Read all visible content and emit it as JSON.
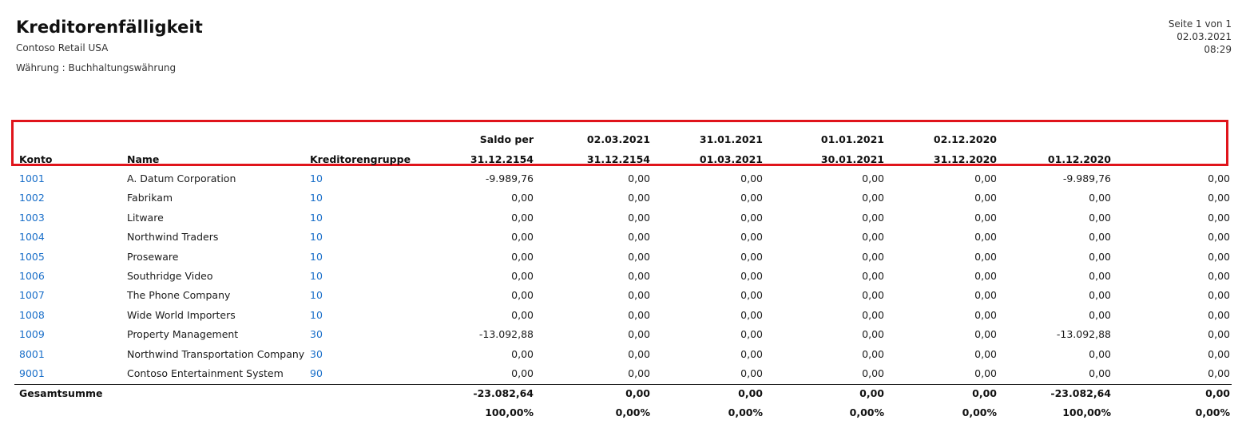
{
  "header": {
    "title": "Kreditorenfälligkeit",
    "company": "Contoso Retail USA",
    "currency_label": "Währung : Buchhaltungswährung",
    "page_label": "Seite 1 von 1",
    "date": "02.03.2021",
    "time": "08:29"
  },
  "columns": {
    "konto": "Konto",
    "name": "Name",
    "group": "Kreditorengruppe",
    "buckets": [
      {
        "line1": "Saldo per",
        "line2": "31.12.2154"
      },
      {
        "line1": "02.03.2021",
        "line2": "31.12.2154"
      },
      {
        "line1": "31.01.2021",
        "line2": "01.03.2021"
      },
      {
        "line1": "01.01.2021",
        "line2": "30.01.2021"
      },
      {
        "line1": "02.12.2020",
        "line2": "31.12.2020"
      },
      {
        "line1": "",
        "line2": "01.12.2020"
      },
      {
        "line1": "",
        "line2": ""
      }
    ]
  },
  "rows": [
    {
      "konto": "1001",
      "name": "A. Datum Corporation",
      "group": "10",
      "values": [
        "-9.989,76",
        "0,00",
        "0,00",
        "0,00",
        "0,00",
        "-9.989,76",
        "0,00"
      ]
    },
    {
      "konto": "1002",
      "name": "Fabrikam",
      "group": "10",
      "values": [
        "0,00",
        "0,00",
        "0,00",
        "0,00",
        "0,00",
        "0,00",
        "0,00"
      ]
    },
    {
      "konto": "1003",
      "name": "Litware",
      "group": "10",
      "values": [
        "0,00",
        "0,00",
        "0,00",
        "0,00",
        "0,00",
        "0,00",
        "0,00"
      ]
    },
    {
      "konto": "1004",
      "name": "Northwind Traders",
      "group": "10",
      "values": [
        "0,00",
        "0,00",
        "0,00",
        "0,00",
        "0,00",
        "0,00",
        "0,00"
      ]
    },
    {
      "konto": "1005",
      "name": "Proseware",
      "group": "10",
      "values": [
        "0,00",
        "0,00",
        "0,00",
        "0,00",
        "0,00",
        "0,00",
        "0,00"
      ]
    },
    {
      "konto": "1006",
      "name": "Southridge Video",
      "group": "10",
      "values": [
        "0,00",
        "0,00",
        "0,00",
        "0,00",
        "0,00",
        "0,00",
        "0,00"
      ]
    },
    {
      "konto": "1007",
      "name": "The Phone Company",
      "group": "10",
      "values": [
        "0,00",
        "0,00",
        "0,00",
        "0,00",
        "0,00",
        "0,00",
        "0,00"
      ]
    },
    {
      "konto": "1008",
      "name": "Wide World Importers",
      "group": "10",
      "values": [
        "0,00",
        "0,00",
        "0,00",
        "0,00",
        "0,00",
        "0,00",
        "0,00"
      ]
    },
    {
      "konto": "1009",
      "name": "Property Management",
      "group": "30",
      "values": [
        "-13.092,88",
        "0,00",
        "0,00",
        "0,00",
        "0,00",
        "-13.092,88",
        "0,00"
      ]
    },
    {
      "konto": "8001",
      "name": "Northwind Transportation Company",
      "group": "30",
      "values": [
        "0,00",
        "0,00",
        "0,00",
        "0,00",
        "0,00",
        "0,00",
        "0,00"
      ]
    },
    {
      "konto": "9001",
      "name": "Contoso Entertainment System",
      "group": "90",
      "values": [
        "0,00",
        "0,00",
        "0,00",
        "0,00",
        "0,00",
        "0,00",
        "0,00"
      ]
    }
  ],
  "totals": {
    "label": "Gesamtsumme",
    "values": [
      "-23.082,64",
      "0,00",
      "0,00",
      "0,00",
      "0,00",
      "-23.082,64",
      "0,00"
    ],
    "percents": [
      "100,00%",
      "0,00%",
      "0,00%",
      "0,00%",
      "0,00%",
      "100,00%",
      "0,00%"
    ]
  },
  "colors": {
    "link": "#1a6fc9",
    "highlight": "#e0141b"
  }
}
